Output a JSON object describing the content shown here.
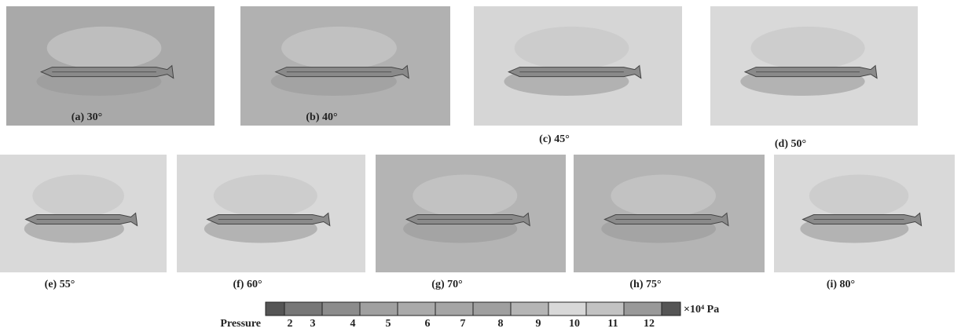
{
  "panels": [
    {
      "caption": "(a) 30°"
    },
    {
      "caption": "(b) 40°"
    },
    {
      "caption": "(c) 45°"
    },
    {
      "caption": "(d) 50°"
    },
    {
      "caption": "(e) 55°"
    },
    {
      "caption": "(f) 60°"
    },
    {
      "caption": "(g) 70°"
    },
    {
      "caption": "(h) 75°"
    },
    {
      "caption": "(i) 80°"
    }
  ],
  "colorbar": {
    "label": "Pressure",
    "unit": "×10⁴ Pa",
    "ticks": [
      "2",
      "3",
      "4",
      "5",
      "6",
      "7",
      "8",
      "9",
      "10",
      "11",
      "12"
    ]
  }
}
